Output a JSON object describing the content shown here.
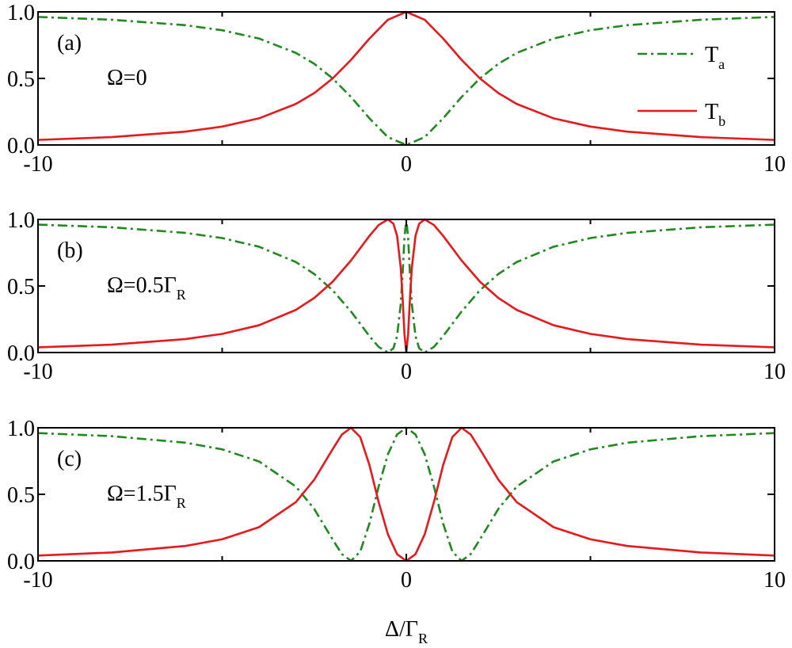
{
  "chart_data": [
    {
      "type": "line",
      "panel_label": "(a)",
      "annotation": "Ω=0",
      "legend": "upper right",
      "x": [
        -10,
        -8,
        -6,
        -5,
        -4,
        -3,
        -2.5,
        -2,
        -1.5,
        -1,
        -0.5,
        0,
        0.5,
        1,
        1.5,
        2,
        2.5,
        3,
        4,
        5,
        6,
        8,
        10
      ],
      "series": [
        {
          "name": "T",
          "subscript": "a",
          "color": "#1e8a1e",
          "dash": "dashdot",
          "values": [
            0.962,
            0.941,
            0.9,
            0.862,
            0.8,
            0.692,
            0.61,
            0.5,
            0.36,
            0.2,
            0.059,
            0,
            0.059,
            0.2,
            0.36,
            0.5,
            0.61,
            0.692,
            0.8,
            0.862,
            0.9,
            0.941,
            0.962
          ]
        },
        {
          "name": "T",
          "subscript": "b",
          "color": "#e8191c",
          "dash": "solid",
          "values": [
            0.038,
            0.059,
            0.1,
            0.138,
            0.2,
            0.308,
            0.39,
            0.5,
            0.64,
            0.8,
            0.941,
            1,
            0.941,
            0.8,
            0.64,
            0.5,
            0.39,
            0.308,
            0.2,
            0.138,
            0.1,
            0.059,
            0.038
          ]
        }
      ],
      "xlim": [
        -10,
        10
      ],
      "ylim": [
        0,
        1
      ],
      "xticks": [
        -10,
        0,
        10
      ],
      "xminorticks": [
        -5,
        5
      ],
      "yticks": [
        {
          "value": 0,
          "label": "0.0"
        },
        {
          "value": 0.5,
          "label": "0.5"
        },
        {
          "value": 1,
          "label": "1.0"
        }
      ]
    },
    {
      "type": "line",
      "panel_label": "(b)",
      "annotation": "Ω=0.5Γ",
      "annotation_sub": "R",
      "x": [
        -10,
        -8,
        -6,
        -5,
        -4,
        -3,
        -2.5,
        -2,
        -1.5,
        -1,
        -0.75,
        -0.5,
        -0.35,
        -0.25,
        -0.15,
        -0.1,
        -0.05,
        0,
        0.05,
        0.1,
        0.15,
        0.25,
        0.35,
        0.5,
        0.75,
        1,
        1.5,
        2,
        2.5,
        3,
        4,
        5,
        6,
        8,
        10
      ],
      "series": [
        {
          "name": "T",
          "subscript": "a",
          "color": "#1e8a1e",
          "dash": "dashdot",
          "values": [
            0.961,
            0.941,
            0.899,
            0.86,
            0.795,
            0.68,
            0.59,
            0.468,
            0.308,
            0.123,
            0.042,
            0,
            0.032,
            0.123,
            0.365,
            0.59,
            0.86,
            1,
            0.86,
            0.59,
            0.365,
            0.123,
            0.032,
            0,
            0.042,
            0.123,
            0.308,
            0.468,
            0.59,
            0.68,
            0.795,
            0.86,
            0.899,
            0.941,
            0.961
          ]
        },
        {
          "name": "T",
          "subscript": "b",
          "color": "#e8191c",
          "dash": "solid",
          "values": [
            0.039,
            0.059,
            0.101,
            0.14,
            0.205,
            0.32,
            0.41,
            0.532,
            0.692,
            0.877,
            0.958,
            1,
            0.968,
            0.877,
            0.635,
            0.41,
            0.14,
            0,
            0.14,
            0.41,
            0.635,
            0.877,
            0.968,
            1,
            0.958,
            0.877,
            0.692,
            0.532,
            0.41,
            0.32,
            0.205,
            0.14,
            0.101,
            0.059,
            0.039
          ]
        }
      ],
      "xlim": [
        -10,
        10
      ],
      "ylim": [
        0,
        1
      ],
      "xticks": [
        -10,
        0,
        10
      ],
      "xminorticks": [
        -5,
        5
      ],
      "yticks": [
        {
          "value": 0,
          "label": "0.0"
        },
        {
          "value": 0.5,
          "label": "0.5"
        },
        {
          "value": 1,
          "label": "1.0"
        }
      ]
    },
    {
      "type": "line",
      "panel_label": "(c)",
      "annotation": "Ω=1.5Γ",
      "annotation_sub": "R",
      "xlabel": "Δ/Γ",
      "xlabel_sub": "R",
      "x": [
        -10,
        -8,
        -6,
        -5,
        -4,
        -3,
        -2.5,
        -2,
        -1.75,
        -1.5,
        -1.25,
        -1,
        -0.75,
        -0.5,
        -0.25,
        0,
        0.25,
        0.5,
        0.75,
        1,
        1.25,
        1.5,
        1.75,
        2,
        2.5,
        3,
        4,
        5,
        6,
        8,
        10
      ],
      "series": [
        {
          "name": "T",
          "subscript": "a",
          "color": "#1e8a1e",
          "dash": "dashdot",
          "values": [
            0.96,
            0.937,
            0.888,
            0.838,
            0.747,
            0.559,
            0.39,
            0.161,
            0.051,
            0,
            0.07,
            0.281,
            0.559,
            0.8,
            0.95,
            1,
            0.95,
            0.8,
            0.559,
            0.281,
            0.07,
            0,
            0.051,
            0.161,
            0.39,
            0.559,
            0.747,
            0.838,
            0.888,
            0.937,
            0.96
          ]
        },
        {
          "name": "T",
          "subscript": "b",
          "color": "#e8191c",
          "dash": "solid",
          "values": [
            0.04,
            0.063,
            0.112,
            0.162,
            0.253,
            0.441,
            0.61,
            0.839,
            0.949,
            1,
            0.93,
            0.719,
            0.441,
            0.2,
            0.05,
            0,
            0.05,
            0.2,
            0.441,
            0.719,
            0.93,
            1,
            0.949,
            0.839,
            0.61,
            0.441,
            0.253,
            0.162,
            0.112,
            0.063,
            0.04
          ]
        }
      ],
      "xlim": [
        -10,
        10
      ],
      "ylim": [
        0,
        1
      ],
      "xticks": [
        -10,
        0,
        10
      ],
      "xminorticks": [
        -5,
        5
      ],
      "yticks": [
        {
          "value": 0,
          "label": "0.0"
        },
        {
          "value": 0.5,
          "label": "0.5"
        },
        {
          "value": 1,
          "label": "1.0"
        }
      ]
    }
  ]
}
